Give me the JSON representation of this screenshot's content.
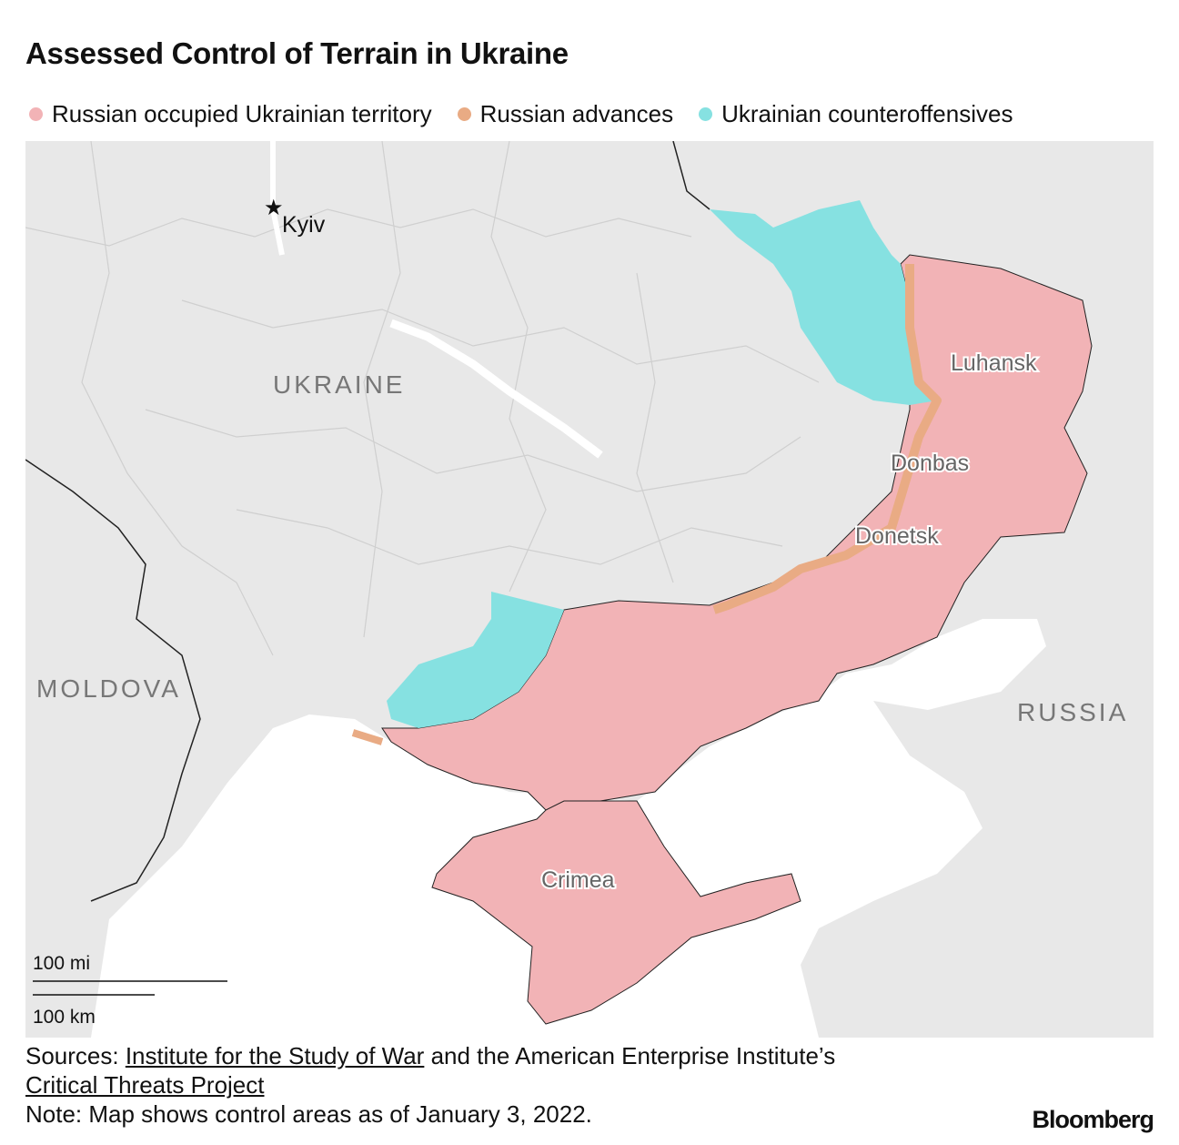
{
  "title": "Assessed Control of Terrain in Ukraine",
  "legend": [
    {
      "label": "Russian occupied Ukrainian territory",
      "color": "#f2b3b6"
    },
    {
      "label": "Russian advances",
      "color": "#e9ab84"
    },
    {
      "label": "Ukrainian counteroffensives",
      "color": "#86e1e1"
    }
  ],
  "map": {
    "land_color": "#e8e8e8",
    "sea_color": "#ffffff",
    "labels": {
      "kyiv": "Kyiv",
      "ukraine": "UKRAINE",
      "moldova": "MOLDOVA",
      "russia": "RUSSIA",
      "luhansk": "Luhansk",
      "donbas": "Donbas",
      "donetsk": "Donetsk",
      "crimea": "Crimea"
    },
    "capital_icon": "star-icon",
    "scale": {
      "miles": "100 mi",
      "km": "100 km"
    }
  },
  "footer": {
    "sources_prefix": "Sources: ",
    "source1": "Institute for the Study of War",
    "sources_middle": " and the American Enterprise Institute’s",
    "source2": "Critical Threats Project",
    "note": "Note: Map shows control areas as of January 3, 2022."
  },
  "brand": "Bloomberg"
}
